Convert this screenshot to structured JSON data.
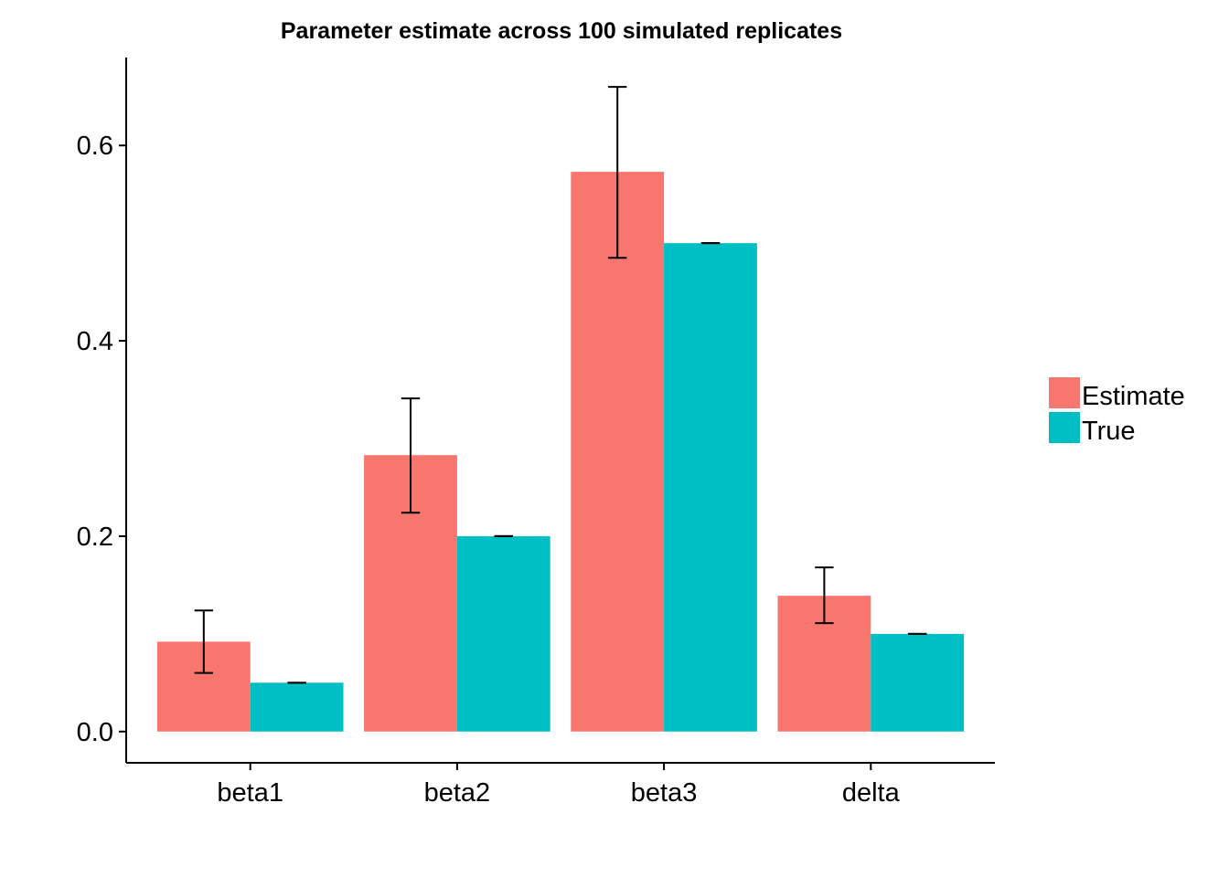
{
  "chart_data": {
    "type": "bar",
    "title": "Parameter estimate across 100 simulated replicates",
    "xlabel": "",
    "ylabel": "",
    "categories": [
      "beta1",
      "beta2",
      "beta3",
      "delta"
    ],
    "series": [
      {
        "name": "Estimate",
        "color": "#F8766D",
        "values": [
          0.092,
          0.283,
          0.573,
          0.139
        ],
        "error_low": [
          0.06,
          0.224,
          0.485,
          0.111
        ],
        "error_high": [
          0.124,
          0.341,
          0.66,
          0.168
        ]
      },
      {
        "name": "True",
        "color": "#00BFC4",
        "values": [
          0.05,
          0.2,
          0.5,
          0.1
        ],
        "error_low": [
          0.05,
          0.2,
          0.5,
          0.1
        ],
        "error_high": [
          0.05,
          0.2,
          0.5,
          0.1
        ]
      }
    ],
    "ylim": [
      -0.032,
      0.69
    ],
    "yticks": [
      0.0,
      0.2,
      0.4,
      0.6
    ],
    "ytick_labels": [
      "0.0",
      "0.2",
      "0.4",
      "0.6"
    ],
    "grid": false,
    "legend_position": "right"
  }
}
